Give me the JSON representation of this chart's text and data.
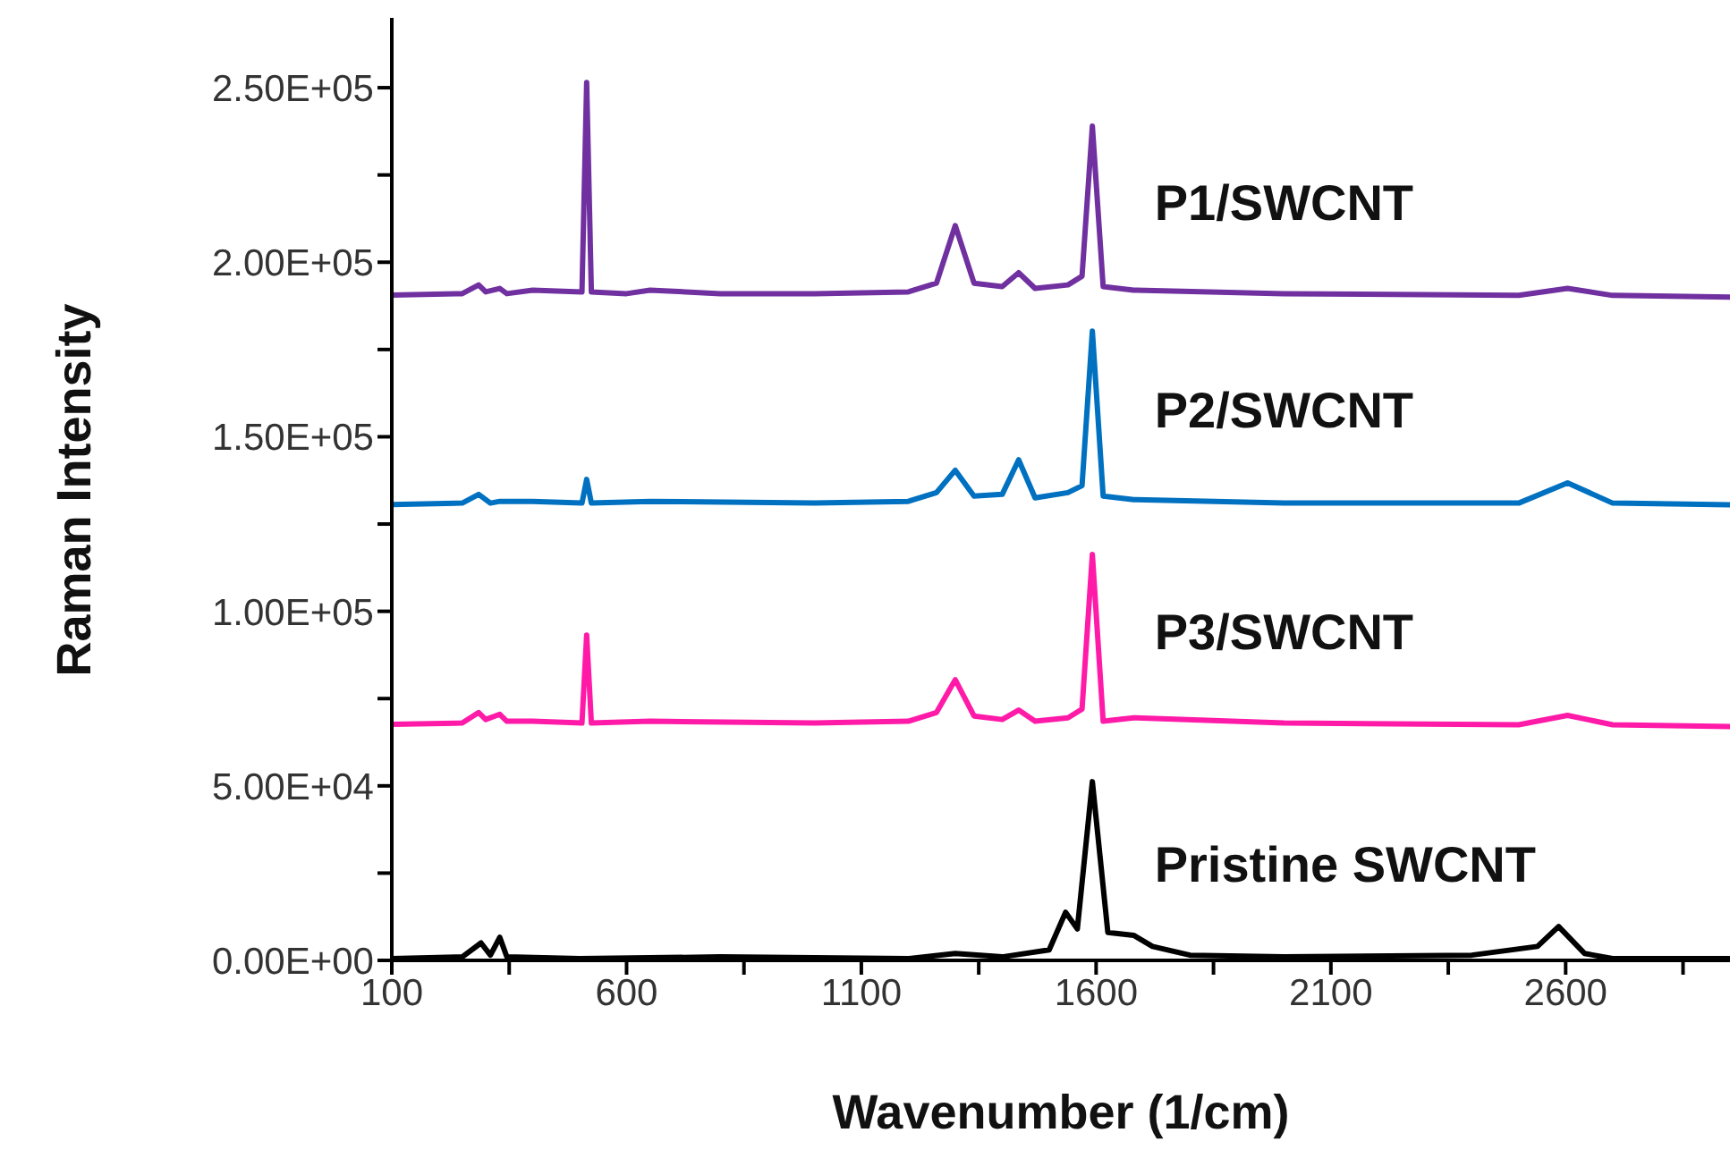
{
  "chart_data": {
    "type": "line",
    "xlabel": "Wavenumber (1/cm)",
    "ylabel": "Raman Intensity",
    "xlim": [
      100,
      2950
    ],
    "ylim": [
      0,
      270000
    ],
    "xticks": [
      100,
      {
        "value": 350,
        "label": null
      },
      600,
      {
        "value": 850,
        "label": null
      },
      1100,
      {
        "value": 1350,
        "label": null
      },
      1600,
      {
        "value": 1850,
        "label": null
      },
      2100,
      {
        "value": 2350,
        "label": null
      },
      2600,
      {
        "value": 2850,
        "label": null
      }
    ],
    "yticks": [
      {
        "value": 0,
        "label": "0.00E+00"
      },
      {
        "value": 25000,
        "label": null
      },
      {
        "value": 50000,
        "label": "5.00E+04"
      },
      {
        "value": 75000,
        "label": null
      },
      {
        "value": 100000,
        "label": "1.00E+05"
      },
      {
        "value": 125000,
        "label": null
      },
      {
        "value": 150000,
        "label": "1.50E+05"
      },
      {
        "value": 175000,
        "label": null
      },
      {
        "value": 200000,
        "label": "2.00E+05"
      },
      {
        "value": 225000,
        "label": null
      },
      {
        "value": 250000,
        "label": "2.50E+05"
      }
    ],
    "grid": false,
    "legend": false,
    "marker": "none",
    "line_style": "solid",
    "series": [
      {
        "name": "P1/SWCNT",
        "color": "#7030a0",
        "x": [
          100,
          250,
          285,
          300,
          330,
          345,
          400,
          505,
          515,
          525,
          600,
          650,
          800,
          1000,
          1200,
          1260,
          1300,
          1340,
          1400,
          1435,
          1470,
          1540,
          1570,
          1592,
          1615,
          1680,
          2000,
          2500,
          2604,
          2700,
          2950
        ],
        "values": [
          190600,
          191000,
          193500,
          191500,
          192500,
          191000,
          192000,
          191500,
          251500,
          191500,
          191000,
          192000,
          191000,
          191000,
          191500,
          194000,
          210500,
          194000,
          193000,
          197000,
          192500,
          193500,
          196000,
          239000,
          193000,
          192000,
          191000,
          190500,
          192500,
          190500,
          190000
        ]
      },
      {
        "name": "P2/SWCNT",
        "color": "#0070c0",
        "x": [
          100,
          250,
          285,
          310,
          330,
          400,
          505,
          515,
          525,
          650,
          1000,
          1200,
          1260,
          1300,
          1340,
          1400,
          1435,
          1470,
          1540,
          1570,
          1592,
          1615,
          1680,
          2000,
          2500,
          2604,
          2700,
          2950
        ],
        "values": [
          130600,
          131000,
          133500,
          131000,
          131500,
          131500,
          131000,
          137800,
          131000,
          131500,
          131000,
          131500,
          134000,
          140400,
          133000,
          133500,
          143400,
          132500,
          134000,
          136000,
          180300,
          133000,
          132000,
          131000,
          131000,
          136800,
          131000,
          130500
        ]
      },
      {
        "name": "P3/SWCNT",
        "color": "#ff1aa8",
        "x": [
          100,
          250,
          285,
          300,
          330,
          345,
          400,
          505,
          515,
          525,
          650,
          1000,
          1200,
          1260,
          1300,
          1340,
          1400,
          1435,
          1470,
          1540,
          1570,
          1592,
          1615,
          1680,
          2000,
          2500,
          2604,
          2700,
          2950
        ],
        "values": [
          67600,
          68000,
          71000,
          69000,
          70500,
          68500,
          68500,
          68000,
          93200,
          68000,
          68500,
          68000,
          68500,
          71000,
          80400,
          70000,
          69000,
          71700,
          68500,
          69500,
          72000,
          116300,
          68500,
          69500,
          68000,
          67500,
          70200,
          67500,
          67000
        ]
      },
      {
        "name": "Pristine SWCNT",
        "color": "#000000",
        "x": [
          100,
          250,
          290,
          310,
          330,
          345,
          500,
          800,
          1200,
          1300,
          1400,
          1500,
          1535,
          1560,
          1592,
          1625,
          1680,
          1720,
          1800,
          2000,
          2400,
          2540,
          2585,
          2640,
          2700,
          2950
        ],
        "values": [
          500,
          1000,
          5000,
          1500,
          6600,
          1000,
          500,
          1000,
          500,
          2000,
          1000,
          3000,
          13800,
          9000,
          51200,
          8000,
          7200,
          4000,
          1500,
          1000,
          1500,
          4000,
          9700,
          2000,
          500,
          500
        ]
      }
    ]
  }
}
